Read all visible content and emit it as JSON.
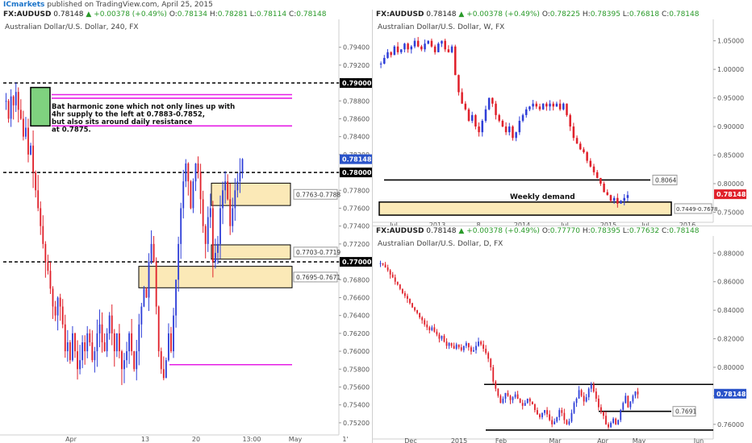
{
  "header": {
    "brand": "ICmarkets",
    "text": " published on TradingView.com, April 25, 2015"
  },
  "panels": {
    "h4": {
      "symbol": "FX:AUDUSD",
      "price": "0.78148",
      "change": "▲ +0.00378 (+0.49%)",
      "o": "0.78134",
      "h": "0.78281",
      "l": "0.78114",
      "c": "0.78148",
      "title": "Australian Dollar/U.S. Dollar, 240, FX"
    },
    "weekly": {
      "symbol": "FX:AUDUSD",
      "price": "0.78148",
      "change": "▲ +0.00378 (+0.49%)",
      "o": "0.78225",
      "h": "0.78395",
      "l": "0.76818",
      "c": "0.78148",
      "title": "Australian Dollar/U.S. Dollar, W, FX"
    },
    "daily": {
      "symbol": "FX:AUDUSD",
      "price": "0.78148",
      "change": "▲ +0.00378 (+0.49%)",
      "o": "0.77770",
      "h": "0.78395",
      "l": "0.77632",
      "c": "0.78148",
      "title": "Australian Dollar/U.S. Dollar, D, FX"
    }
  },
  "chart_data": [
    {
      "type": "candlestick",
      "timeframe": "240",
      "title": "Australian Dollar/U.S. Dollar, 240, FX",
      "x_ticks": [
        "Apr",
        "13",
        "20",
        "13:00",
        "May",
        "1'"
      ],
      "y_ticks": [
        "0.79400",
        "0.79200",
        "0.79000",
        "0.78800",
        "0.78600",
        "0.78400",
        "0.78200",
        "0.78000",
        "0.77800",
        "0.77600",
        "0.77400",
        "0.77200",
        "0.77000",
        "0.76800",
        "0.76600",
        "0.76400",
        "0.76200",
        "0.76000",
        "0.75800",
        "0.75600",
        "0.75400",
        "0.75200"
      ],
      "ylim": [
        0.751,
        0.7955
      ],
      "current_price": 0.78148,
      "current_price_label": "0.78148",
      "levels": [
        {
          "value": 0.79,
          "label": "0.79000",
          "style": "dashed"
        },
        {
          "value": 0.78,
          "label": "0.78000",
          "style": "dashed"
        },
        {
          "value": 0.77,
          "label": "0.77000",
          "style": "dashed"
        }
      ],
      "magenta_lines": [
        0.7887,
        0.7883,
        0.7852,
        0.7585
      ],
      "zones": [
        {
          "label": "0.7763-0.7788",
          "low": 0.7763,
          "high": 0.7788
        },
        {
          "label": "0.7703-0.7719",
          "low": 0.7703,
          "high": 0.7719
        },
        {
          "label": "0.7695-0.7671",
          "low": 0.7671,
          "high": 0.7695
        }
      ],
      "green_zone": {
        "low": 0.7852,
        "high": 0.7883
      },
      "annotation": [
        "Bat harmonic zone which not only lines up with",
        "4hr supply to the left at 0.7883-0.7852,",
        "but also sits around daily resistance",
        "at 0.7875."
      ],
      "close_series": [
        0.788,
        0.786,
        0.7885,
        0.7875,
        0.789,
        0.787,
        0.786,
        0.784,
        0.785,
        0.782,
        0.783,
        0.78,
        0.778,
        0.776,
        0.774,
        0.772,
        0.77,
        0.769,
        0.767,
        0.765,
        0.764,
        0.766,
        0.765,
        0.763,
        0.76,
        0.761,
        0.759,
        0.762,
        0.76,
        0.758,
        0.759,
        0.761,
        0.76,
        0.762,
        0.761,
        0.759,
        0.76,
        0.762,
        0.763,
        0.761,
        0.76,
        0.762,
        0.764,
        0.762,
        0.76,
        0.762,
        0.76,
        0.758,
        0.759,
        0.76,
        0.762,
        0.76,
        0.758,
        0.76,
        0.763,
        0.765,
        0.767,
        0.766,
        0.77,
        0.772,
        0.77,
        0.765,
        0.76,
        0.758,
        0.757,
        0.759,
        0.762,
        0.76,
        0.764,
        0.768,
        0.772,
        0.776,
        0.779,
        0.781,
        0.779,
        0.776,
        0.779,
        0.781,
        0.78,
        0.777,
        0.774,
        0.772,
        0.775,
        0.776,
        0.77,
        0.771,
        0.772,
        0.776,
        0.778,
        0.779,
        0.777,
        0.774,
        0.776,
        0.778,
        0.779,
        0.78,
        0.7815
      ]
    },
    {
      "type": "candlestick",
      "timeframe": "W",
      "title": "Australian Dollar/U.S. Dollar, W, FX",
      "x_ticks": [
        "Jul",
        "2013",
        "8",
        "2014",
        "Jul",
        "2015",
        "Jul",
        "2016"
      ],
      "y_ticks": [
        "1.05000",
        "1.00000",
        "0.95000",
        "0.90000",
        "0.85000",
        "0.80000",
        "0.75000"
      ],
      "ylim": [
        0.738,
        1.065
      ],
      "current_price": 0.78148,
      "current_price_label": "0.78148",
      "levels": [
        {
          "value": 0.8064,
          "label": "0.8064"
        }
      ],
      "zones": [
        {
          "label": "0.7449-0.7678",
          "low": 0.7449,
          "high": 0.7678
        }
      ],
      "zone_title": "Weekly demand",
      "close_series": [
        1.01,
        1.02,
        1.03,
        1.025,
        1.04,
        1.03,
        1.035,
        1.045,
        1.035,
        1.04,
        1.05,
        1.04,
        1.035,
        1.045,
        1.05,
        1.04,
        1.03,
        1.045,
        1.05,
        1.035,
        1.03,
        1.04,
        0.99,
        0.96,
        0.94,
        0.93,
        0.91,
        0.92,
        0.9,
        0.89,
        0.91,
        0.93,
        0.95,
        0.94,
        0.92,
        0.91,
        0.9,
        0.89,
        0.9,
        0.88,
        0.89,
        0.91,
        0.92,
        0.93,
        0.935,
        0.94,
        0.935,
        0.93,
        0.94,
        0.935,
        0.94,
        0.935,
        0.94,
        0.93,
        0.94,
        0.92,
        0.9,
        0.88,
        0.87,
        0.86,
        0.855,
        0.84,
        0.83,
        0.82,
        0.81,
        0.8,
        0.785,
        0.78,
        0.77,
        0.775,
        0.765,
        0.77,
        0.775,
        0.78
      ]
    },
    {
      "type": "candlestick",
      "timeframe": "D",
      "title": "Australian Dollar/U.S. Dollar, D, FX",
      "x_ticks": [
        "Dec",
        "2015",
        "Feb",
        "Mar",
        "Apr",
        "May",
        "Jun"
      ],
      "y_ticks": [
        "0.88000",
        "0.86000",
        "0.84000",
        "0.82000",
        "0.80000",
        "0.78000",
        "0.76000"
      ],
      "ylim": [
        0.752,
        0.883
      ],
      "current_price": 0.78148,
      "current_price_label": "0.78148",
      "levels": [
        {
          "value": 0.788
        },
        {
          "value": 0.7691,
          "label": "0.7691"
        },
        {
          "value": 0.756
        }
      ],
      "close_series": [
        0.873,
        0.872,
        0.87,
        0.868,
        0.865,
        0.863,
        0.86,
        0.858,
        0.855,
        0.852,
        0.85,
        0.848,
        0.845,
        0.842,
        0.84,
        0.838,
        0.835,
        0.833,
        0.83,
        0.828,
        0.826,
        0.828,
        0.825,
        0.823,
        0.82,
        0.822,
        0.818,
        0.815,
        0.817,
        0.815,
        0.813,
        0.816,
        0.814,
        0.812,
        0.815,
        0.817,
        0.814,
        0.811,
        0.812,
        0.815,
        0.818,
        0.816,
        0.813,
        0.81,
        0.806,
        0.8,
        0.79,
        0.785,
        0.78,
        0.775,
        0.778,
        0.782,
        0.78,
        0.777,
        0.779,
        0.781,
        0.778,
        0.775,
        0.773,
        0.775,
        0.778,
        0.776,
        0.774,
        0.77,
        0.767,
        0.765,
        0.768,
        0.77,
        0.767,
        0.763,
        0.76,
        0.762,
        0.765,
        0.77,
        0.768,
        0.763,
        0.76,
        0.762,
        0.768,
        0.775,
        0.778,
        0.784,
        0.78,
        0.776,
        0.779,
        0.785,
        0.788,
        0.783,
        0.778,
        0.772,
        0.769,
        0.766,
        0.76,
        0.758,
        0.761,
        0.764,
        0.76,
        0.763,
        0.77,
        0.775,
        0.78,
        0.772,
        0.776,
        0.78,
        0.783,
        0.781
      ]
    }
  ],
  "colors": {
    "bull": "#2f3fd8",
    "bear": "#e0212b",
    "zone_fill": "#fbe9b7",
    "green_zone": "#7fd27f",
    "magenta": "#e61ee6",
    "price_tag": "#2a53c9",
    "price_tag_weekly": "#e0212b"
  }
}
